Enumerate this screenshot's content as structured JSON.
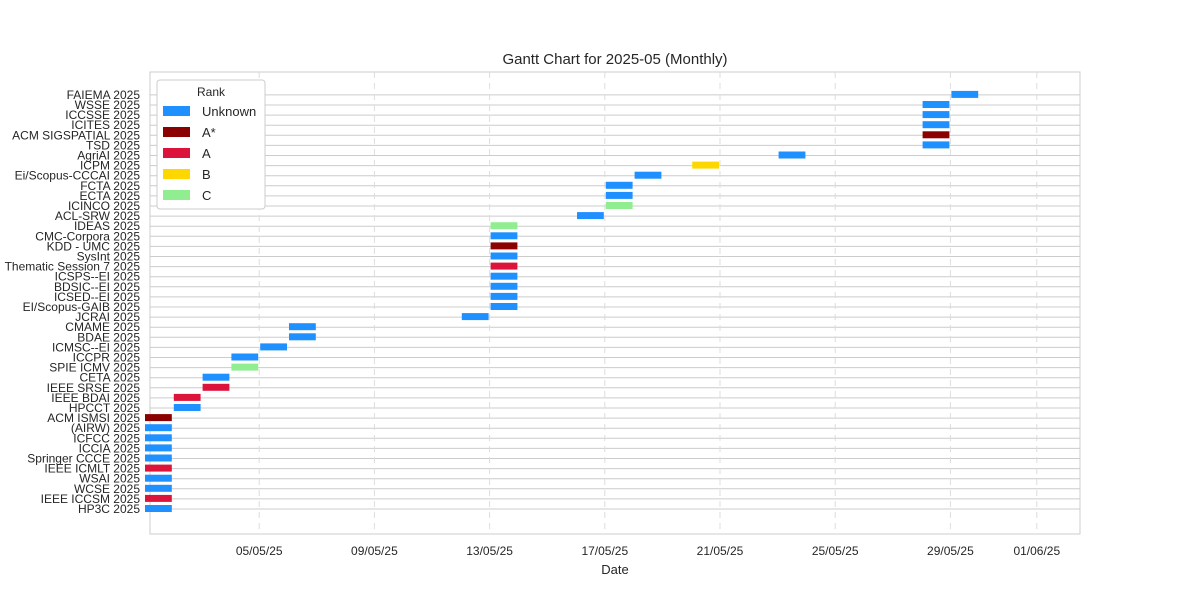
{
  "chart_data": {
    "type": "gantt",
    "title": "Gantt Chart for 2025-05 (Monthly)",
    "xlabel": "Date",
    "ylabel": "",
    "x_ticks": [
      "2025-05-05",
      "2025-05-09",
      "2025-05-13",
      "2025-05-17",
      "2025-05-21",
      "2025-05-25",
      "2025-05-29",
      "2025-06-01"
    ],
    "x_tick_labels": [
      "05/05/25",
      "09/05/25",
      "13/05/25",
      "17/05/25",
      "21/05/25",
      "25/05/25",
      "29/05/25",
      "01/06/25"
    ],
    "x_range": [
      "2025-05-01T05:00",
      "2025-06-02T12:00"
    ],
    "grid": true,
    "legend": {
      "title": "Rank",
      "placement": "top-left",
      "items": [
        {
          "label": "Unknown",
          "color": "#1e90ff"
        },
        {
          "label": "A*",
          "color": "#8b0000"
        },
        {
          "label": "A",
          "color": "#dc143c"
        },
        {
          "label": "B",
          "color": "#ffd700"
        },
        {
          "label": "C",
          "color": "#90ee90"
        }
      ]
    },
    "tasks": [
      {
        "name": "HP3C 2025",
        "start": "2025-05-01",
        "end": "2025-05-02",
        "rank": "Unknown"
      },
      {
        "name": "IEEE ICCSM 2025",
        "start": "2025-05-01",
        "end": "2025-05-02",
        "rank": "A"
      },
      {
        "name": "WCSE 2025",
        "start": "2025-05-01",
        "end": "2025-05-02",
        "rank": "Unknown"
      },
      {
        "name": "WSAI 2025",
        "start": "2025-05-01",
        "end": "2025-05-02",
        "rank": "Unknown"
      },
      {
        "name": "IEEE ICMLT 2025",
        "start": "2025-05-01",
        "end": "2025-05-02",
        "rank": "A"
      },
      {
        "name": "Springer CCCE 2025",
        "start": "2025-05-01",
        "end": "2025-05-02",
        "rank": "Unknown"
      },
      {
        "name": "ICCIA 2025",
        "start": "2025-05-01",
        "end": "2025-05-02",
        "rank": "Unknown"
      },
      {
        "name": "ICFCC 2025",
        "start": "2025-05-01",
        "end": "2025-05-02",
        "rank": "Unknown"
      },
      {
        "name": "(AIRW) 2025",
        "start": "2025-05-01",
        "end": "2025-05-02",
        "rank": "Unknown"
      },
      {
        "name": "ACM ISMSI 2025",
        "start": "2025-05-01",
        "end": "2025-05-02",
        "rank": "A*"
      },
      {
        "name": "HPCCT 2025",
        "start": "2025-05-02",
        "end": "2025-05-03",
        "rank": "Unknown"
      },
      {
        "name": "IEEE BDAI 2025",
        "start": "2025-05-02",
        "end": "2025-05-03",
        "rank": "A"
      },
      {
        "name": "IEEE SRSE 2025",
        "start": "2025-05-03",
        "end": "2025-05-04",
        "rank": "A"
      },
      {
        "name": "CETA 2025",
        "start": "2025-05-03",
        "end": "2025-05-04",
        "rank": "Unknown"
      },
      {
        "name": "SPIE ICMV 2025",
        "start": "2025-05-04",
        "end": "2025-05-05",
        "rank": "C"
      },
      {
        "name": "ICCPR 2025",
        "start": "2025-05-04",
        "end": "2025-05-05",
        "rank": "Unknown"
      },
      {
        "name": "ICMSC--EI 2025",
        "start": "2025-05-05",
        "end": "2025-05-06",
        "rank": "Unknown"
      },
      {
        "name": "BDAE 2025",
        "start": "2025-05-06",
        "end": "2025-05-07",
        "rank": "Unknown"
      },
      {
        "name": "CMAME 2025",
        "start": "2025-05-06",
        "end": "2025-05-07",
        "rank": "Unknown"
      },
      {
        "name": "JCRAI 2025",
        "start": "2025-05-12",
        "end": "2025-05-13",
        "rank": "Unknown"
      },
      {
        "name": "EI/Scopus-GAIB 2025",
        "start": "2025-05-13",
        "end": "2025-05-14",
        "rank": "Unknown"
      },
      {
        "name": "ICSED--EI 2025",
        "start": "2025-05-13",
        "end": "2025-05-14",
        "rank": "Unknown"
      },
      {
        "name": "BDSIC--EI 2025",
        "start": "2025-05-13",
        "end": "2025-05-14",
        "rank": "Unknown"
      },
      {
        "name": "ICSPS--EI 2025",
        "start": "2025-05-13",
        "end": "2025-05-14",
        "rank": "Unknown"
      },
      {
        "name": "Thematic Session 7 2025",
        "start": "2025-05-13",
        "end": "2025-05-14",
        "rank": "A"
      },
      {
        "name": "SysInt 2025",
        "start": "2025-05-13",
        "end": "2025-05-14",
        "rank": "Unknown"
      },
      {
        "name": "KDD - UMC 2025",
        "start": "2025-05-13",
        "end": "2025-05-14",
        "rank": "A*"
      },
      {
        "name": "CMC-Corpora 2025",
        "start": "2025-05-13",
        "end": "2025-05-14",
        "rank": "Unknown"
      },
      {
        "name": "IDEAS 2025",
        "start": "2025-05-13",
        "end": "2025-05-14",
        "rank": "C"
      },
      {
        "name": "ACL-SRW 2025",
        "start": "2025-05-16",
        "end": "2025-05-17",
        "rank": "Unknown"
      },
      {
        "name": "ICINCO 2025",
        "start": "2025-05-17",
        "end": "2025-05-18",
        "rank": "C"
      },
      {
        "name": "ECTA 2025",
        "start": "2025-05-17",
        "end": "2025-05-18",
        "rank": "Unknown"
      },
      {
        "name": "FCTA 2025",
        "start": "2025-05-17",
        "end": "2025-05-18",
        "rank": "Unknown"
      },
      {
        "name": "Ei/Scopus-CCCAI 2025",
        "start": "2025-05-18",
        "end": "2025-05-19",
        "rank": "Unknown"
      },
      {
        "name": "ICPM 2025",
        "start": "2025-05-20",
        "end": "2025-05-21",
        "rank": "B"
      },
      {
        "name": "AgriAI 2025",
        "start": "2025-05-23",
        "end": "2025-05-24",
        "rank": "Unknown"
      },
      {
        "name": "TSD 2025",
        "start": "2025-05-28",
        "end": "2025-05-29",
        "rank": "Unknown"
      },
      {
        "name": "ACM SIGSPATIAL 2025",
        "start": "2025-05-28",
        "end": "2025-05-29",
        "rank": "A*"
      },
      {
        "name": "ICITES 2025",
        "start": "2025-05-28",
        "end": "2025-05-29",
        "rank": "Unknown"
      },
      {
        "name": "ICCSSE 2025",
        "start": "2025-05-28",
        "end": "2025-05-29",
        "rank": "Unknown"
      },
      {
        "name": "WSSE 2025",
        "start": "2025-05-28",
        "end": "2025-05-29",
        "rank": "Unknown"
      },
      {
        "name": "FAIEMA 2025",
        "start": "2025-05-29",
        "end": "2025-05-30",
        "rank": "Unknown"
      }
    ]
  }
}
